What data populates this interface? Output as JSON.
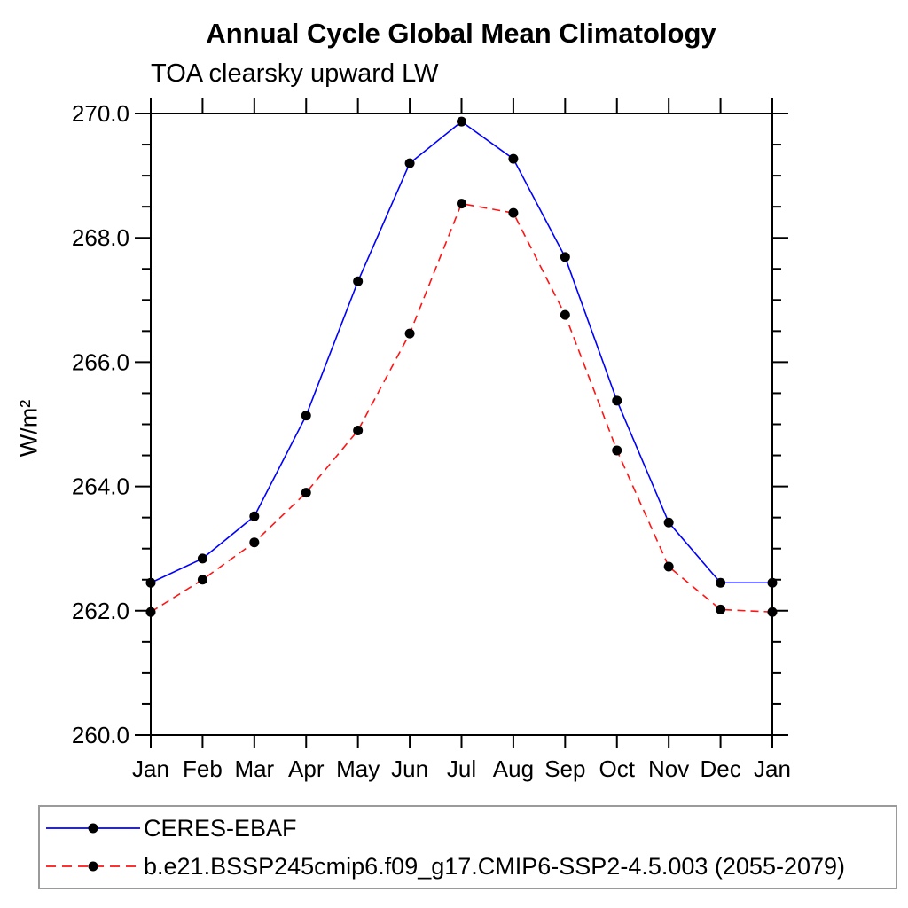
{
  "chart_data": {
    "type": "line",
    "title": "Annual Cycle Global Mean Climatology",
    "subtitle": "TOA clearsky upward LW",
    "ylabel": "W/m²",
    "xlabel": "",
    "categories": [
      "Jan",
      "Feb",
      "Mar",
      "Apr",
      "May",
      "Jun",
      "Jul",
      "Aug",
      "Sep",
      "Oct",
      "Nov",
      "Dec",
      "Jan"
    ],
    "ylim": [
      260.0,
      270.0
    ],
    "y_major_step": 2.0,
    "y_minor_step": 0.5,
    "y_tick_labels": [
      "260.0",
      "262.0",
      "264.0",
      "266.0",
      "268.0",
      "270.0"
    ],
    "grid": false,
    "axis_color": "#000000",
    "marker_shape": "filled-circle",
    "legend_position": "bottom-left-boxed",
    "series": [
      {
        "name": "CERES-EBAF",
        "line_color": "#0000ff",
        "line_style": "solid",
        "marker_color": "#000000",
        "values": [
          262.45,
          262.84,
          263.52,
          265.14,
          267.3,
          269.2,
          269.87,
          269.27,
          267.69,
          265.38,
          263.42,
          262.45,
          262.45
        ]
      },
      {
        "name": "b.e21.BSSP245cmip6.f09_g17.CMIP6-SSP2-4.5.003 (2055-2079)",
        "line_color": "#ff1414",
        "line_style": "dashed",
        "marker_color": "#000000",
        "values": [
          261.98,
          262.5,
          263.1,
          263.9,
          264.9,
          266.46,
          268.55,
          268.4,
          266.76,
          264.58,
          262.71,
          262.02,
          261.98
        ]
      }
    ]
  }
}
